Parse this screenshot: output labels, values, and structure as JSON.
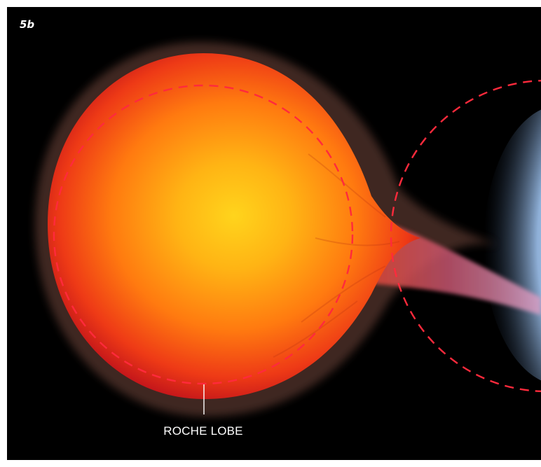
{
  "figure": {
    "panel_id": "5b",
    "annotation_label": "ROCHE LOBE"
  },
  "colors": {
    "background": "#000000",
    "star_core": "#ffd21a",
    "star_mid": "#ff8a12",
    "star_edge": "#e0201a",
    "roche_lobe_dash": "#ff2a3c",
    "stream": "#c0507a",
    "companion_glow": "#a8c4e8"
  },
  "icons": {
    "donor_star": "red-giant-star",
    "companion": "compact-accretor",
    "roche_lobes": "dashed-circle"
  }
}
